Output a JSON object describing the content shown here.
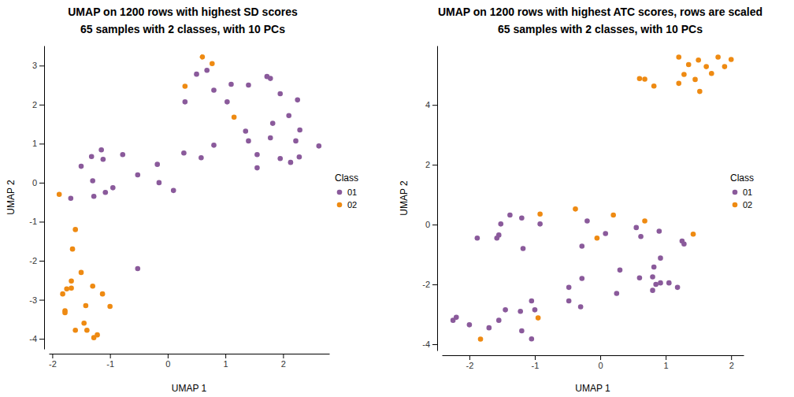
{
  "chart_data": [
    {
      "type": "scatter",
      "title": "UMAP on 1200 rows with highest SD scores",
      "subtitle": "65 samples with 2 classes, with 10 PCs",
      "x_label": "UMAP 1",
      "y_label": "UMAP 2",
      "legend_title": "Class",
      "xlim": [
        -2.06,
        2.8
      ],
      "xticks": [
        -2,
        -1,
        0,
        1,
        2
      ],
      "ylim": [
        -4.26,
        3.51
      ],
      "yticks": [
        -4,
        -3,
        -2,
        -1,
        0,
        1,
        2,
        3
      ],
      "series": [
        {
          "name": "01",
          "color": "#8a5a9b",
          "x": [
            0.68,
            0.5,
            0.3,
            0.8,
            1.03,
            1.1,
            1.4,
            1.72,
            1.78,
            1.95,
            2.25,
            2.1,
            2.29,
            1.82,
            1.35,
            1.4,
            1.55,
            1.78,
            2.22,
            1.95,
            1.55,
            2.13,
            2.28,
            2.62,
            0.8,
            0.28,
            0.58,
            -1.15,
            -1.12,
            -1.32,
            -1.5,
            -0.78,
            -0.52,
            -0.18,
            -0.15,
            0.1,
            -0.95,
            -1.08,
            -1.28,
            -1.3,
            -1.68,
            -0.52
          ],
          "values": [
            2.88,
            2.78,
            2.07,
            2.37,
            2.07,
            2.52,
            2.5,
            2.72,
            2.67,
            2.28,
            2.12,
            1.72,
            1.35,
            1.52,
            1.32,
            1.07,
            0.72,
            1.15,
            1.07,
            0.62,
            0.38,
            0.52,
            0.66,
            0.94,
            0.96,
            0.76,
            0.64,
            0.84,
            0.6,
            0.67,
            0.42,
            0.72,
            0.2,
            0.47,
            0.0,
            -0.2,
            -0.13,
            -0.25,
            -0.35,
            0.05,
            -0.4,
            -2.2
          ]
        },
        {
          "name": "02",
          "color": "#ee8a12",
          "x": [
            0.6,
            0.77,
            0.3,
            1.15,
            -1.88,
            -1.6,
            -1.65,
            -1.5,
            -1.67,
            -1.75,
            -1.67,
            -1.82,
            -1.78,
            -1.78,
            -1.3,
            -1.13,
            -1.0,
            -1.42,
            -1.45,
            -1.4,
            -1.6,
            -1.28,
            -1.22
          ],
          "values": [
            3.22,
            3.05,
            2.47,
            1.68,
            -0.3,
            -1.2,
            -1.7,
            -2.3,
            -2.52,
            -2.72,
            -2.7,
            -2.85,
            -3.28,
            -3.33,
            -2.65,
            -2.85,
            -3.17,
            -3.15,
            -3.6,
            -3.78,
            -3.78,
            -3.97,
            -3.9
          ]
        }
      ]
    },
    {
      "type": "scatter",
      "title": "UMAP on 1200 rows with highest ATC scores, rows are scaled",
      "subtitle": "65 samples with 2 classes, with 10 PCs",
      "x_label": "UMAP 1",
      "y_label": "UMAP 2",
      "legend_title": "Class",
      "xlim": [
        -2.42,
        2.19
      ],
      "xticks": [
        -2,
        -1,
        0,
        1,
        2
      ],
      "ylim": [
        -4.21,
        5.98
      ],
      "yticks": [
        -4,
        -2,
        0,
        2,
        4
      ],
      "series": [
        {
          "name": "01",
          "color": "#8a5a9b",
          "x": [
            -1.88,
            -1.52,
            -1.55,
            -1.58,
            -1.38,
            -1.2,
            -1.18,
            -0.92,
            -0.2,
            -0.28,
            0.08,
            0.55,
            0.62,
            0.9,
            1.25,
            1.28,
            0.82,
            0.92,
            0.3,
            -0.28,
            -0.48,
            -0.48,
            -0.3,
            0.25,
            0.6,
            0.8,
            0.85,
            0.92,
            1.05,
            1.18,
            0.8,
            -1.05,
            -1.0,
            -1.22,
            -1.45,
            -1.55,
            -1.7,
            -2.0,
            -2.2,
            -2.25,
            -1.2,
            -1.05
          ],
          "values": [
            -0.45,
            0.02,
            -0.35,
            -0.45,
            0.32,
            0.22,
            -0.8,
            0.02,
            0.12,
            -0.72,
            -0.3,
            -0.1,
            -0.4,
            -0.22,
            -0.55,
            -0.65,
            -1.42,
            -1.12,
            -1.52,
            -1.8,
            -2.1,
            -2.55,
            -2.75,
            -2.3,
            -1.78,
            -1.75,
            -2.0,
            -1.95,
            -1.95,
            -2.1,
            -2.2,
            -2.55,
            -2.85,
            -2.9,
            -2.85,
            -3.2,
            -3.45,
            -3.35,
            -3.1,
            -3.2,
            -3.55,
            -3.82
          ]
        },
        {
          "name": "02",
          "color": "#ee8a12",
          "x": [
            1.2,
            1.8,
            2.0,
            1.5,
            1.35,
            1.9,
            1.62,
            1.7,
            1.28,
            1.45,
            1.2,
            0.6,
            0.68,
            0.82,
            1.52,
            -0.92,
            -0.38,
            0.2,
            0.68,
            -0.05,
            1.42,
            -0.95,
            -1.83
          ],
          "values": [
            5.6,
            5.6,
            5.52,
            5.5,
            5.35,
            5.28,
            5.28,
            5.05,
            5.02,
            4.85,
            4.72,
            4.88,
            4.86,
            4.63,
            4.45,
            0.35,
            0.52,
            0.32,
            0.12,
            -0.45,
            -0.32,
            -3.12,
            -3.83
          ]
        }
      ]
    }
  ]
}
